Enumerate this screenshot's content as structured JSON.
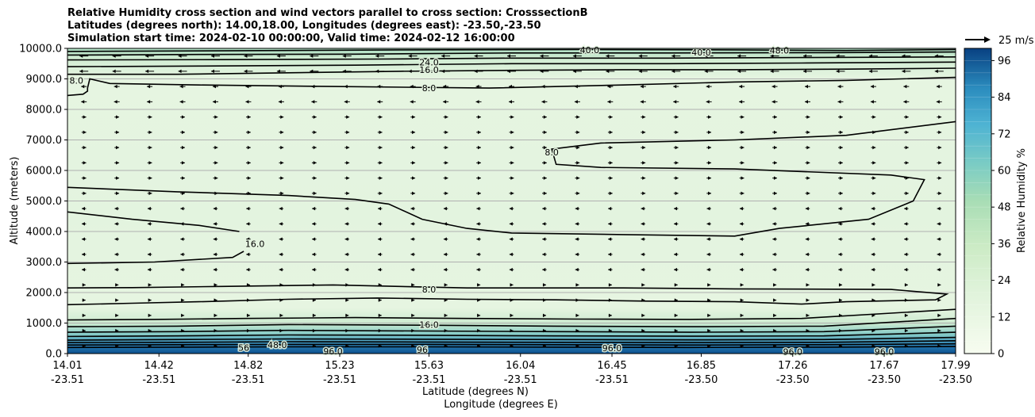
{
  "title_lines": [
    "Relative Humidity cross section and wind vectors parallel to cross section: CrosssectionB",
    "Latitudes (degrees north): 14.00,18.00, Longitudes (degrees east): -23.50,-23.50",
    "Simulation start time: 2024-02-10 00:00:00, Valid time: 2024-02-12 16:00:00"
  ],
  "chart_data": {
    "type": "contour",
    "ylabel": "Altitude (meters)",
    "xlabel_lat": "Latitude (degrees N)",
    "xlabel_lon": "Longitude (degrees E)",
    "ylim": [
      0,
      10000
    ],
    "y_ticks": [
      "0.0",
      "1000.0",
      "2000.0",
      "3000.0",
      "4000.0",
      "5000.0",
      "6000.0",
      "7000.0",
      "8000.0",
      "9000.0",
      "10000.0"
    ],
    "x_ticks": [
      {
        "lat": "14.01",
        "lon": "-23.51"
      },
      {
        "lat": "14.42",
        "lon": "-23.51"
      },
      {
        "lat": "14.82",
        "lon": "-23.51"
      },
      {
        "lat": "15.23",
        "lon": "-23.51"
      },
      {
        "lat": "15.63",
        "lon": "-23.51"
      },
      {
        "lat": "16.04",
        "lon": "-23.51"
      },
      {
        "lat": "16.45",
        "lon": "-23.51"
      },
      {
        "lat": "16.85",
        "lon": "-23.50"
      },
      {
        "lat": "17.26",
        "lon": "-23.50"
      },
      {
        "lat": "17.67",
        "lon": "-23.50"
      },
      {
        "lat": "17.99",
        "lon": "-23.50"
      }
    ],
    "grid": "horizontal",
    "colorbar": {
      "label": "Relative Humidity %",
      "min": 0,
      "max": 100,
      "ticks": [
        "0",
        "12",
        "24",
        "36",
        "48",
        "60",
        "72",
        "84",
        "96"
      ],
      "colormap": "GnBu"
    },
    "quiver_key": "25 m/s",
    "contour_labels": [
      {
        "text": "8.0",
        "x": 15.63,
        "y": 2100
      },
      {
        "text": "8.0",
        "x": 15.63,
        "y": 8700
      },
      {
        "text": "8.0",
        "x": 14.05,
        "y": 8950
      },
      {
        "text": "8.0",
        "x": 16.18,
        "y": 6600
      },
      {
        "text": "16.0",
        "x": 14.85,
        "y": 3600
      },
      {
        "text": "16.0",
        "x": 15.63,
        "y": 9300
      },
      {
        "text": "16.0",
        "x": 15.63,
        "y": 950
      },
      {
        "text": "24.0",
        "x": 15.63,
        "y": 9550
      },
      {
        "text": "40.0",
        "x": 16.35,
        "y": 9950
      },
      {
        "text": "40.0",
        "x": 16.85,
        "y": 9870
      },
      {
        "text": "48.0",
        "x": 17.2,
        "y": 9930
      },
      {
        "text": "48.0",
        "x": 14.95,
        "y": 280
      },
      {
        "text": "56",
        "x": 14.8,
        "y": 200
      },
      {
        "text": "96.0",
        "x": 15.2,
        "y": 80
      },
      {
        "text": "96",
        "x": 15.6,
        "y": 130
      },
      {
        "text": "96.0",
        "x": 16.45,
        "y": 180
      },
      {
        "text": "96.0",
        "x": 17.26,
        "y": 60
      },
      {
        "text": "96.0",
        "x": 17.67,
        "y": 60
      }
    ],
    "contours": [
      {
        "level": "8.0",
        "points": [
          [
            14.0,
            1600
          ],
          [
            14.3,
            1650
          ],
          [
            14.6,
            1700
          ],
          [
            15.0,
            1780
          ],
          [
            15.4,
            1820
          ],
          [
            15.8,
            1780
          ],
          [
            16.2,
            1760
          ],
          [
            16.6,
            1720
          ],
          [
            17.0,
            1700
          ],
          [
            17.3,
            1620
          ],
          [
            17.5,
            1700
          ],
          [
            17.9,
            1760
          ],
          [
            17.95,
            1950
          ],
          [
            17.7,
            2100
          ],
          [
            17.0,
            2120
          ],
          [
            16.5,
            2150
          ],
          [
            15.8,
            2150
          ],
          [
            15.2,
            2250
          ],
          [
            14.7,
            2200
          ],
          [
            14.3,
            2160
          ],
          [
            14.0,
            2150
          ]
        ]
      },
      {
        "level": "16.0",
        "points": [
          [
            14.0,
            2950
          ],
          [
            14.4,
            3000
          ],
          [
            14.75,
            3150
          ],
          [
            14.8,
            3350
          ]
        ]
      },
      {
        "level": "16.0",
        "points": [
          [
            14.0,
            4650
          ],
          [
            14.3,
            4400
          ],
          [
            14.6,
            4200
          ],
          [
            14.78,
            4000
          ]
        ]
      },
      {
        "level": "8.0",
        "points": [
          [
            14.0,
            5450
          ],
          [
            14.5,
            5300
          ],
          [
            15.0,
            5180
          ],
          [
            15.3,
            5050
          ],
          [
            15.45,
            4900
          ],
          [
            15.6,
            4400
          ],
          [
            15.8,
            4100
          ],
          [
            16.0,
            3950
          ],
          [
            16.5,
            3900
          ],
          [
            17.0,
            3850
          ],
          [
            17.2,
            4100
          ],
          [
            17.6,
            4400
          ],
          [
            17.8,
            5000
          ],
          [
            17.85,
            5700
          ],
          [
            17.7,
            5850
          ],
          [
            17.0,
            6050
          ],
          [
            16.4,
            6100
          ],
          [
            16.2,
            6200
          ],
          [
            16.18,
            6700
          ],
          [
            16.4,
            6900
          ],
          [
            17.0,
            7000
          ],
          [
            17.5,
            7150
          ],
          [
            17.99,
            7600
          ]
        ]
      },
      {
        "level": "8.0",
        "points": [
          [
            14.0,
            8450
          ],
          [
            14.08,
            8500
          ],
          [
            14.1,
            8600
          ],
          [
            14.1,
            8700
          ],
          [
            14.11,
            9000
          ],
          [
            14.2,
            8850
          ],
          [
            14.6,
            8800
          ],
          [
            15.2,
            8750
          ],
          [
            15.9,
            8700
          ],
          [
            16.5,
            8800
          ],
          [
            17.0,
            8900
          ],
          [
            17.5,
            8950
          ],
          [
            17.99,
            9050
          ]
        ]
      },
      {
        "level": "16.0",
        "points": [
          [
            14.0,
            9150
          ],
          [
            14.5,
            9150
          ],
          [
            15.0,
            9200
          ],
          [
            15.5,
            9250
          ],
          [
            16.0,
            9280
          ],
          [
            16.5,
            9300
          ],
          [
            17.0,
            9300
          ],
          [
            17.5,
            9320
          ],
          [
            17.99,
            9350
          ]
        ]
      },
      {
        "level": "24.0",
        "points": [
          [
            14.0,
            9400
          ],
          [
            14.6,
            9420
          ],
          [
            15.3,
            9450
          ],
          [
            16.0,
            9500
          ],
          [
            16.7,
            9500
          ],
          [
            17.3,
            9520
          ],
          [
            17.99,
            9550
          ]
        ]
      },
      {
        "level": "32.0",
        "points": [
          [
            14.0,
            9620
          ],
          [
            14.7,
            9630
          ],
          [
            15.4,
            9650
          ],
          [
            16.0,
            9680
          ],
          [
            16.7,
            9680
          ],
          [
            17.3,
            9700
          ],
          [
            17.99,
            9720
          ]
        ]
      },
      {
        "level": "40.0",
        "points": [
          [
            14.0,
            9780
          ],
          [
            14.6,
            9800
          ],
          [
            15.3,
            9810
          ],
          [
            16.0,
            9850
          ],
          [
            16.7,
            9850
          ],
          [
            17.4,
            9860
          ],
          [
            17.99,
            9880
          ]
        ]
      },
      {
        "level": "48.0",
        "points": [
          [
            14.0,
            9900
          ],
          [
            14.7,
            9920
          ],
          [
            15.5,
            9950
          ],
          [
            16.3,
            9960
          ],
          [
            17.0,
            9950
          ],
          [
            17.5,
            9930
          ],
          [
            17.99,
            9960
          ]
        ]
      },
      {
        "level": "16.0",
        "points": [
          [
            14.0,
            1100
          ],
          [
            14.4,
            1120
          ],
          [
            14.8,
            1150
          ],
          [
            15.3,
            1180
          ],
          [
            15.8,
            1150
          ],
          [
            16.3,
            1130
          ],
          [
            16.8,
            1120
          ],
          [
            17.3,
            1150
          ],
          [
            17.99,
            1450
          ]
        ]
      },
      {
        "level": "24.0",
        "points": [
          [
            14.0,
            880
          ],
          [
            14.5,
            900
          ],
          [
            15.0,
            950
          ],
          [
            15.6,
            930
          ],
          [
            16.2,
            900
          ],
          [
            16.8,
            880
          ],
          [
            17.4,
            900
          ],
          [
            17.99,
            1150
          ]
        ]
      },
      {
        "level": "32.0",
        "points": [
          [
            14.0,
            700
          ],
          [
            14.5,
            720
          ],
          [
            15.0,
            760
          ],
          [
            15.6,
            740
          ],
          [
            16.2,
            720
          ],
          [
            16.8,
            700
          ],
          [
            17.4,
            720
          ],
          [
            17.99,
            900
          ]
        ]
      },
      {
        "level": "40.0",
        "points": [
          [
            14.0,
            560
          ],
          [
            14.5,
            580
          ],
          [
            15.0,
            610
          ],
          [
            15.6,
            600
          ],
          [
            16.2,
            580
          ],
          [
            16.8,
            570
          ],
          [
            17.4,
            580
          ],
          [
            17.99,
            700
          ]
        ]
      },
      {
        "level": "48.0",
        "points": [
          [
            14.0,
            440
          ],
          [
            14.5,
            460
          ],
          [
            15.0,
            480
          ],
          [
            15.6,
            470
          ],
          [
            16.2,
            460
          ],
          [
            16.8,
            450
          ],
          [
            17.4,
            460
          ],
          [
            17.99,
            530
          ]
        ]
      },
      {
        "level": "56.0",
        "points": [
          [
            14.0,
            360
          ],
          [
            14.5,
            370
          ],
          [
            15.0,
            390
          ],
          [
            15.6,
            380
          ],
          [
            16.2,
            370
          ],
          [
            16.8,
            360
          ],
          [
            17.4,
            370
          ],
          [
            17.99,
            420
          ]
        ]
      },
      {
        "level": "72.0",
        "points": [
          [
            14.0,
            280
          ],
          [
            14.5,
            290
          ],
          [
            15.0,
            300
          ],
          [
            15.6,
            300
          ],
          [
            16.2,
            290
          ],
          [
            16.8,
            280
          ],
          [
            17.4,
            290
          ],
          [
            17.99,
            320
          ]
        ]
      },
      {
        "level": "88.0",
        "points": [
          [
            14.0,
            200
          ],
          [
            14.5,
            210
          ],
          [
            15.0,
            220
          ],
          [
            15.6,
            220
          ],
          [
            16.2,
            210
          ],
          [
            16.8,
            200
          ],
          [
            17.4,
            210
          ],
          [
            17.99,
            230
          ]
        ]
      }
    ]
  }
}
